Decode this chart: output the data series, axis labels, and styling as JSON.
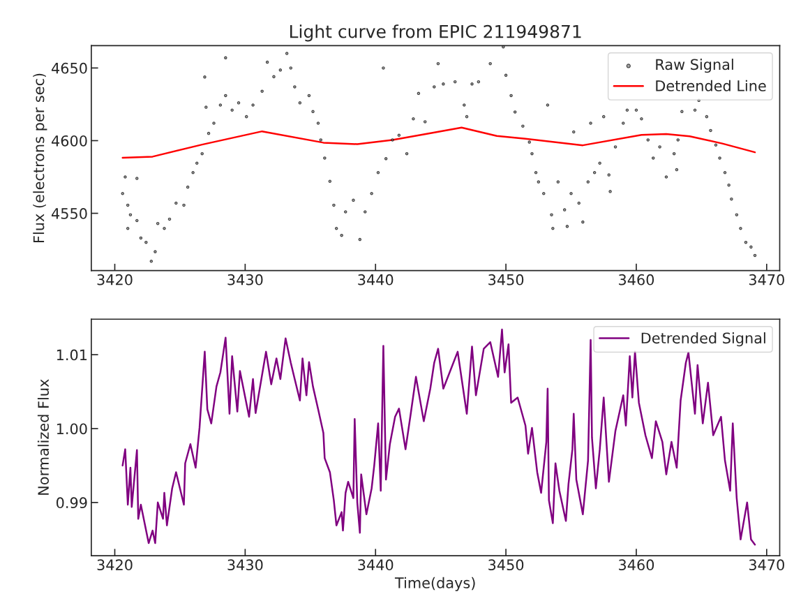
{
  "chart_data": [
    {
      "type": "scatter",
      "title": "Light curve from EPIC 211949871",
      "ylabel": "Flux (electrons per sec)",
      "xlim": [
        3418.2,
        3471.0
      ],
      "ylim": [
        4510.6,
        4665.4
      ],
      "xticks": [
        3420,
        3430,
        3440,
        3450,
        3460,
        3470
      ],
      "yticks": [
        4550,
        4600,
        4650
      ],
      "legend": "top right",
      "series": [
        {
          "name": "Raw Signal",
          "marker": "circle",
          "color": "#000000",
          "x": [
            3420.6,
            3420.8,
            3421.0,
            3421.2,
            3421.0,
            3421.7,
            3421.7,
            3422.0,
            3422.4,
            3422.8,
            3423.1,
            3423.3,
            3423.8,
            3424.2,
            3424.7,
            3425.3,
            3425.6,
            3426.0,
            3426.3,
            3426.7,
            3426.9,
            3427.0,
            3427.2,
            3427.6,
            3428.1,
            3428.5,
            3428.5,
            3429.0,
            3429.5,
            3430.1,
            3430.6,
            3431.3,
            3431.7,
            3432.2,
            3432.7,
            3433.2,
            3433.5,
            3433.8,
            3434.2,
            3434.9,
            3435.2,
            3435.6,
            3435.8,
            3436.1,
            3436.5,
            3436.8,
            3437.0,
            3437.4,
            3437.7,
            3438.3,
            3438.8,
            3439.2,
            3439.7,
            3440.2,
            3440.6,
            3440.8,
            3441.3,
            3441.8,
            3442.4,
            3442.9,
            3443.3,
            3443.8,
            3444.5,
            3444.8,
            3445.2,
            3446.1,
            3446.8,
            3447.0,
            3447.4,
            3447.9,
            3448.8,
            3449.8,
            3450.0,
            3450.4,
            3450.7,
            3451.3,
            3451.8,
            3452.0,
            3452.3,
            3452.5,
            3452.9,
            3453.2,
            3453.5,
            3453.6,
            3454.0,
            3454.5,
            3454.7,
            3455.0,
            3455.2,
            3455.6,
            3455.9,
            3456.3,
            3456.5,
            3456.8,
            3457.2,
            3457.5,
            3457.9,
            3458.0,
            3458.4,
            3459.0,
            3459.3,
            3459.7,
            3460.0,
            3460.4,
            3460.9,
            3461.3,
            3461.8,
            3462.3,
            3462.9,
            3463.1,
            3463.2,
            3463.5,
            3463.8,
            3463.9,
            3464.5,
            3464.8,
            3465.4,
            3465.7,
            3466.1,
            3466.4,
            3466.8,
            3467.1,
            3467.3,
            3467.7,
            3468.0,
            3468.4,
            3468.8,
            3469.1
          ],
          "values": [
            4563.6,
            4575,
            4555.6,
            4549,
            4539.6,
            4574,
            4545,
            4533,
            4530,
            4517,
            4523.6,
            4543,
            4539.6,
            4546,
            4557,
            4555.6,
            4568,
            4578,
            4584.5,
            4591,
            4643.8,
            4623,
            4605,
            4612,
            4624.5,
            4657,
            4631,
            4621,
            4626,
            4616.5,
            4624.5,
            4634,
            4654,
            4644,
            4648.6,
            4660,
            4650,
            4637,
            4626,
            4631,
            4620,
            4612,
            4600.5,
            4588,
            4572,
            4555.6,
            4539.6,
            4534.8,
            4551,
            4559,
            4532,
            4551,
            4563.6,
            4578,
            4650,
            4587.6,
            4600.5,
            4603.7,
            4591,
            4615,
            4632.5,
            4613,
            4637,
            4653,
            4639,
            4640.5,
            4624.5,
            4616.5,
            4639,
            4640.5,
            4653,
            4664.5,
            4645,
            4631,
            4619.7,
            4610,
            4599,
            4591,
            4578,
            4571.6,
            4563.6,
            4624.5,
            4549,
            4539.6,
            4571.6,
            4552.4,
            4541,
            4563.6,
            4606,
            4557,
            4544,
            4571.6,
            4612,
            4578,
            4584.5,
            4616.5,
            4576.4,
            4565,
            4595.7,
            4612,
            4621,
            null,
            4621,
            4615,
            4600.5,
            4588,
            4595.7,
            4575,
            4591,
            4580,
            4600.5,
            4620,
            null,
            null,
            4621,
            4627.7,
            4616.5,
            4607,
            4597,
            4588,
            4578,
            4569.4,
            4559.8,
            4549,
            4539.6,
            4530,
            4526.8,
            4521
          ]
        },
        {
          "name": "Detrended Line",
          "type": "line",
          "color": "#ff0000",
          "x": [
            3420.6,
            3422.9,
            3426.7,
            3431.3,
            3436.0,
            3438.6,
            3441.3,
            3444.3,
            3446.6,
            3449.3,
            3451.5,
            3455.9,
            3460.4,
            3462.3,
            3464.1,
            3466.6,
            3469.1
          ],
          "values": [
            4588.2,
            4589,
            4597.3,
            4606.4,
            4598.6,
            4597.6,
            4600.5,
            4605.3,
            4609,
            4603.2,
            4601.3,
            4596.8,
            4604,
            4604.5,
            4603,
            4598,
            4592
          ]
        }
      ]
    },
    {
      "type": "line",
      "xlabel": "Time(days)",
      "ylabel": "Normalized Flux",
      "xlim": [
        3418.2,
        3471.0
      ],
      "ylim": [
        0.9828,
        1.0148
      ],
      "xticks": [
        3420,
        3430,
        3440,
        3450,
        3460,
        3470
      ],
      "yticks": [
        0.99,
        {
          "value": 1.0,
          "label": "1.00"
        },
        1.01
      ],
      "legend": "top right",
      "series": [
        {
          "name": "Detrended Signal",
          "color": "#800080",
          "x": [
            3420.6,
            3420.8,
            3421.0,
            3421.2,
            3421.3,
            3421.7,
            3421.8,
            3422.0,
            3422.6,
            3422.9,
            3423.1,
            3423.3,
            3423.7,
            3423.8,
            3424.0,
            3424.4,
            3424.7,
            3425.3,
            3425.4,
            3425.8,
            3426.2,
            3426.5,
            3426.9,
            3427.1,
            3427.4,
            3427.8,
            3428.1,
            3428.5,
            3428.8,
            3429.0,
            3429.4,
            3429.6,
            3430.3,
            3430.6,
            3430.8,
            3431.6,
            3432.0,
            3432.4,
            3432.7,
            3433.1,
            3433.5,
            3433.8,
            3434.2,
            3434.4,
            3434.7,
            3434.9,
            3435.2,
            3435.6,
            3436.0,
            3436.1,
            3436.5,
            3436.8,
            3437.0,
            3437.4,
            3437.5,
            3437.7,
            3437.9,
            3438.3,
            3438.4,
            3438.6,
            3438.8,
            3438.9,
            3439.3,
            3439.7,
            3439.9,
            3440.2,
            3440.4,
            3440.6,
            3440.8,
            3441.1,
            3441.5,
            3441.8,
            3442.3,
            3442.7,
            3443.1,
            3443.7,
            3444.2,
            3444.5,
            3444.8,
            3445.2,
            3446.3,
            3447.0,
            3447.4,
            3447.7,
            3448.3,
            3448.8,
            3449.4,
            3449.7,
            3449.9,
            3450.2,
            3450.4,
            3450.9,
            3451.5,
            3451.7,
            3452.0,
            3452.4,
            3452.7,
            3453.1,
            3453.2,
            3453.3,
            3453.6,
            3453.8,
            3454.1,
            3454.6,
            3454.8,
            3455.1,
            3455.2,
            3455.4,
            3455.9,
            3456.3,
            3456.5,
            3456.6,
            3456.9,
            3457.2,
            3457.5,
            3457.9,
            3458.4,
            3459.0,
            3459.2,
            3459.5,
            3459.7,
            3459.9,
            3460.2,
            3460.7,
            3461.2,
            3461.5,
            3462.0,
            3462.3,
            3462.7,
            3463.1,
            3463.4,
            3463.8,
            3464.0,
            3464.5,
            3464.7,
            3465.1,
            3465.5,
            3465.9,
            3466.5,
            3466.8,
            3467.2,
            3467.4,
            3467.7,
            3468.0,
            3468.5,
            3468.8,
            3469.1
          ],
          "values": [
            0.995,
            0.9972,
            0.9897,
            0.9947,
            0.9894,
            0.9971,
            0.9878,
            0.9897,
            0.9845,
            0.9862,
            0.9845,
            0.99,
            0.9878,
            0.9913,
            0.9869,
            0.9919,
            0.9941,
            0.9897,
            0.9953,
            0.9979,
            0.9947,
            1.0001,
            1.0104,
            1.0026,
            1.0007,
            1.0057,
            1.0076,
            1.0123,
            1.002,
            1.0098,
            1.0023,
            1.0078,
            1.0016,
            1.0067,
            1.0021,
            1.0104,
            1.006,
            1.0095,
            1.0067,
            1.0122,
            1.0089,
            1.0067,
            1.0038,
            1.0095,
            1.0045,
            1.009,
            1.0057,
            1.0026,
            0.9994,
            0.996,
            0.9941,
            0.9903,
            0.9869,
            0.9887,
            0.9862,
            0.9913,
            0.9928,
            0.9906,
            1.0013,
            0.99,
            0.9859,
            0.9938,
            0.9884,
            0.9919,
            0.995,
            1.0007,
            0.9916,
            1.0112,
            0.9931,
            0.9979,
            1.0016,
            1.0027,
            0.9972,
            1.002,
            1.007,
            1.001,
            1.0054,
            1.0089,
            1.0108,
            1.0054,
            1.0104,
            1.002,
            1.0111,
            1.0045,
            1.0108,
            1.0117,
            1.007,
            1.0134,
            1.0076,
            1.0114,
            1.0035,
            1.0042,
            1.0004,
            0.9966,
            1.0001,
            0.9941,
            0.9913,
            0.9982,
            1.0054,
            0.9903,
            0.9872,
            0.9953,
            0.9916,
            0.9875,
            0.9925,
            0.9972,
            1.002,
            0.9931,
            0.9884,
            0.9957,
            1.012,
            0.9988,
            0.9919,
            0.9972,
            1.0042,
            0.9928,
            0.9997,
            1.0045,
            1.0004,
            1.0098,
            1.0042,
            1.0104,
            1.0035,
            0.9991,
            0.996,
            1.001,
            0.9982,
            0.9938,
            0.9982,
            0.9947,
            1.0038,
            1.0089,
            1.0103,
            1.002,
            1.0086,
            1.0007,
            1.0062,
            0.9991,
            1.0016,
            0.9957,
            0.9916,
            1.0007,
            0.9906,
            0.985,
            0.99,
            0.985,
            0.9843
          ]
        }
      ]
    }
  ]
}
